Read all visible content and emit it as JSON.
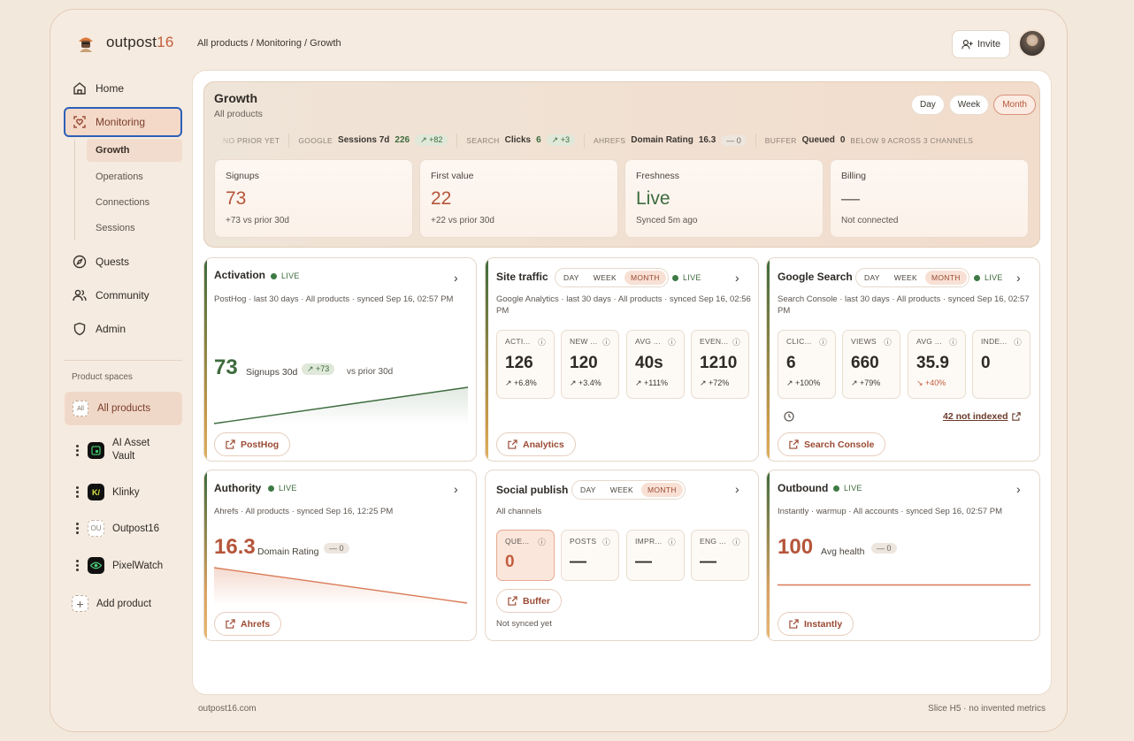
{
  "brand": {
    "name": "outpost",
    "accent": "16"
  },
  "breadcrumb": "All products / Monitoring / Growth",
  "header": {
    "invite_label": "Invite"
  },
  "nav": {
    "home": "Home",
    "monitoring": "Monitoring",
    "growth": "Growth",
    "operations": "Operations",
    "connections": "Connections",
    "sessions": "Sessions",
    "quests": "Quests",
    "community": "Community",
    "admin": "Admin"
  },
  "sidebar": {
    "product_spaces_label": "Product spaces",
    "all_chip": "All",
    "all_products": "All products",
    "products": [
      {
        "name": "AI Asset Vault",
        "icon": "vault-icon"
      },
      {
        "name": "Klinky",
        "icon": "klinky-icon",
        "chip": "K/"
      },
      {
        "name": "Outpost16",
        "icon": "ou-icon",
        "chip": "OU"
      },
      {
        "name": "PixelWatch",
        "icon": "eye-icon"
      }
    ],
    "add_product": "Add product"
  },
  "hero": {
    "title": "Growth",
    "subtitle": "All products",
    "range": [
      "Day",
      "Week",
      "Month"
    ],
    "range_selected": "Month",
    "ticker": {
      "lead": "NO PRIOR YET",
      "google": {
        "src": "GOOGLE",
        "label": "Sessions 7d",
        "value": "226",
        "delta": "↗ +82"
      },
      "search": {
        "src": "SEARCH",
        "label": "Clicks",
        "value": "6",
        "delta": "↗ +3"
      },
      "ahrefs": {
        "src": "AHREFS",
        "label": "Domain Rating",
        "value": "16.3",
        "delta": "— 0"
      },
      "buffer": {
        "src": "BUFFER",
        "label": "Queued",
        "value": "0",
        "note": "BELOW 9 ACROSS 3 CHANNELS"
      }
    },
    "kpis": [
      {
        "label": "Signups",
        "value": "73",
        "sub": "+73 vs prior 30d"
      },
      {
        "label": "First value",
        "value": "22",
        "sub": "+22 vs prior 30d"
      },
      {
        "label": "Freshness",
        "value": "Live",
        "sub": "Synced 5m ago"
      },
      {
        "label": "Billing",
        "value": "—",
        "sub": "Not connected"
      }
    ]
  },
  "cards": {
    "activation": {
      "title": "Activation",
      "live": "LIVE",
      "meta": "PostHog · last 30 days · All products · synced Sep 16, 02:57 PM",
      "value": "73",
      "value_label": "Signups 30d",
      "delta": "↗ +73",
      "compare": "vs prior 30d",
      "button": "PostHog"
    },
    "site_traffic": {
      "title": "Site traffic",
      "segs": [
        "DAY",
        "WEEK",
        "MONTH"
      ],
      "live": "LIVE",
      "meta": "Google Analytics · last 30 days · All products · synced Sep 16, 02:56 PM",
      "metrics": [
        {
          "label": "ACTI...",
          "value": "126",
          "delta": "↗ +6.8%"
        },
        {
          "label": "NEW ...",
          "value": "120",
          "delta": "↗ +3.4%"
        },
        {
          "label": "AVG ...",
          "value": "40s",
          "delta": "↗ +111%"
        },
        {
          "label": "EVEN...",
          "value": "1210",
          "delta": "↗ +72%"
        }
      ],
      "button": "Analytics"
    },
    "google_search": {
      "title": "Google Search",
      "segs": [
        "DAY",
        "WEEK",
        "MONTH"
      ],
      "live": "LIVE",
      "meta": "Search Console · last 30 days · All products · synced Sep 16, 02:57 PM",
      "metrics": [
        {
          "label": "CLIC...",
          "value": "6",
          "delta": "↗ +100%"
        },
        {
          "label": "VIEWS",
          "value": "660",
          "delta": "↗ +79%"
        },
        {
          "label": "AVG ...",
          "value": "35.9",
          "delta": "↘ +40%"
        },
        {
          "label": "INDE...",
          "value": "0",
          "delta": ""
        }
      ],
      "not_indexed": "42 not indexed",
      "button": "Search Console"
    },
    "authority": {
      "title": "Authority",
      "live": "LIVE",
      "meta": "Ahrefs · All products · synced Sep 16, 12:25 PM",
      "value": "16.3",
      "value_label": "Domain Rating",
      "delta": "— 0",
      "button": "Ahrefs"
    },
    "social": {
      "title": "Social publish",
      "segs": [
        "DAY",
        "WEEK",
        "MONTH"
      ],
      "meta": "All channels",
      "metrics": [
        {
          "label": "QUE...",
          "value": "0"
        },
        {
          "label": "POSTS",
          "value": "—"
        },
        {
          "label": "IMPR...",
          "value": "—"
        },
        {
          "label": "ENG ...",
          "value": "—"
        }
      ],
      "button": "Buffer",
      "status": "Not synced yet"
    },
    "outbound": {
      "title": "Outbound",
      "live": "LIVE",
      "meta": "Instantly · warmup · All accounts · synced Sep 16, 02:57 PM",
      "value": "100",
      "value_label": "Avg health",
      "delta": "— 0",
      "button": "Instantly"
    }
  },
  "footer": {
    "left": "outpost16.com",
    "right": "Slice H5 · no invented metrics"
  },
  "colors": {
    "accent": "#b5553a",
    "live": "#3d7a44",
    "focus": "#2d5fb8"
  }
}
